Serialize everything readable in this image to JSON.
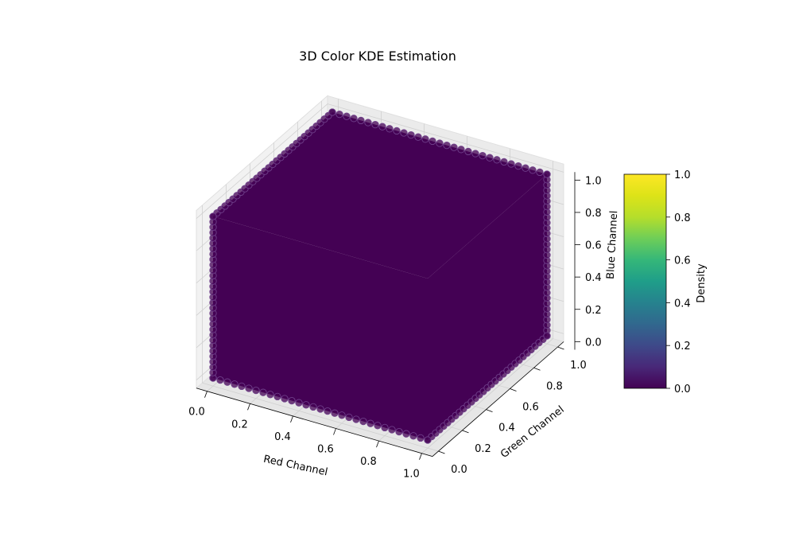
{
  "chart_data": {
    "type": "scatter",
    "projection": "3d",
    "title": "3D Color KDE Estimation",
    "xlabel": "Red Channel",
    "ylabel": "Green Channel",
    "zlabel": "Blue Channel",
    "xlim": [
      0,
      1
    ],
    "ylim": [
      0,
      1
    ],
    "zlim": [
      0,
      1
    ],
    "xticks": [
      "0.0",
      "0.2",
      "0.4",
      "0.6",
      "0.8",
      "1.0"
    ],
    "yticks": [
      "0.0",
      "0.2",
      "0.4",
      "0.6",
      "0.8",
      "1.0"
    ],
    "zticks": [
      "0.0",
      "0.2",
      "0.4",
      "0.6",
      "0.8",
      "1.0"
    ],
    "grid": true,
    "points": {
      "description": "uniform grid over the unit RGB cube",
      "x_range": [
        0,
        1
      ],
      "y_range": [
        0,
        1
      ],
      "z_range": [
        0,
        1
      ],
      "density": 0.0
    },
    "colormap": "viridis",
    "colorbar": {
      "label": "Density",
      "ticks": [
        "0.0",
        "0.2",
        "0.4",
        "0.6",
        "0.8",
        "1.0"
      ],
      "range": [
        0,
        1
      ]
    },
    "marker_color": "#440154",
    "marker_edge_color": "#6f3f8a"
  }
}
